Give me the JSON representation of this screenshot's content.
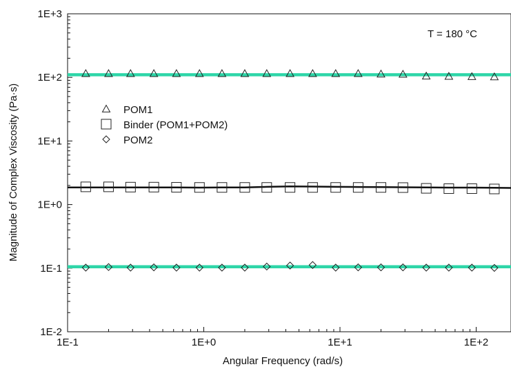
{
  "chart_data": {
    "type": "scatter",
    "title": "",
    "xlabel": "Angular Frequency (rad/s)",
    "ylabel": "Magnitude of Complex Viscosity (Pa·s)",
    "xscale": "log",
    "yscale": "log",
    "xlim": [
      0.1,
      200
    ],
    "ylim": [
      0.01,
      1000
    ],
    "x_tick_values": [
      0.1,
      1,
      10,
      100
    ],
    "x_tick_labels": [
      "1E-1",
      "1E+0",
      "1E+1",
      "1E+2"
    ],
    "y_tick_values": [
      0.01,
      0.1,
      1,
      10,
      100,
      1000
    ],
    "y_tick_labels": [
      "1E-2",
      "1E-1",
      "1E+0",
      "1E+1",
      "1E+2",
      "1E+3"
    ],
    "grid": false,
    "legend_position": "upper-left",
    "annotation": "T = 180 °C",
    "x": [
      0.136,
      0.2,
      0.29,
      0.43,
      0.63,
      0.93,
      1.36,
      2.0,
      2.9,
      4.3,
      6.3,
      9.3,
      13.6,
      20,
      29,
      43,
      63,
      93,
      136,
      200
    ],
    "series": [
      {
        "name": "POM1",
        "marker": "triangle",
        "color": "#222222",
        "values": [
          115,
          115,
          115,
          115,
          115,
          115,
          115,
          115,
          115,
          115,
          115,
          115,
          115,
          113,
          112,
          105,
          104,
          103,
          102,
          null
        ]
      },
      {
        "name": "Binder (POM1+POM2)",
        "marker": "square",
        "color": "#222222",
        "values": [
          1.9,
          1.9,
          1.88,
          1.88,
          1.87,
          1.86,
          1.86,
          1.86,
          1.86,
          1.86,
          1.86,
          1.86,
          1.86,
          1.86,
          1.85,
          1.8,
          1.78,
          1.78,
          1.76,
          1.6
        ]
      },
      {
        "name": "POM2",
        "marker": "diamond",
        "color": "#222222",
        "values": [
          0.102,
          0.104,
          0.102,
          0.103,
          0.102,
          0.102,
          0.102,
          0.102,
          0.106,
          0.11,
          0.112,
          0.102,
          0.103,
          0.103,
          0.103,
          0.102,
          0.102,
          0.102,
          0.101,
          null
        ]
      }
    ],
    "fit_lines": [
      {
        "color": "#2ed6a8",
        "x": [
          0.1,
          200
        ],
        "values": [
          110,
          110
        ]
      },
      {
        "color": "#111111",
        "x": [
          0.1,
          0.136,
          0.2,
          0.29,
          0.43,
          0.63,
          0.93,
          1.36,
          2.0,
          2.9,
          4.3,
          6.3,
          9.3,
          13.6,
          20,
          29,
          43,
          63,
          93,
          136,
          200
        ],
        "values": [
          1.86,
          1.86,
          1.86,
          1.86,
          1.86,
          1.86,
          1.85,
          1.86,
          1.86,
          1.9,
          1.93,
          1.92,
          1.9,
          1.89,
          1.88,
          1.87,
          1.86,
          1.85,
          1.85,
          1.84,
          1.82
        ]
      },
      {
        "color": "#2ed6a8",
        "x": [
          0.1,
          200
        ],
        "values": [
          0.105,
          0.105
        ]
      }
    ]
  }
}
